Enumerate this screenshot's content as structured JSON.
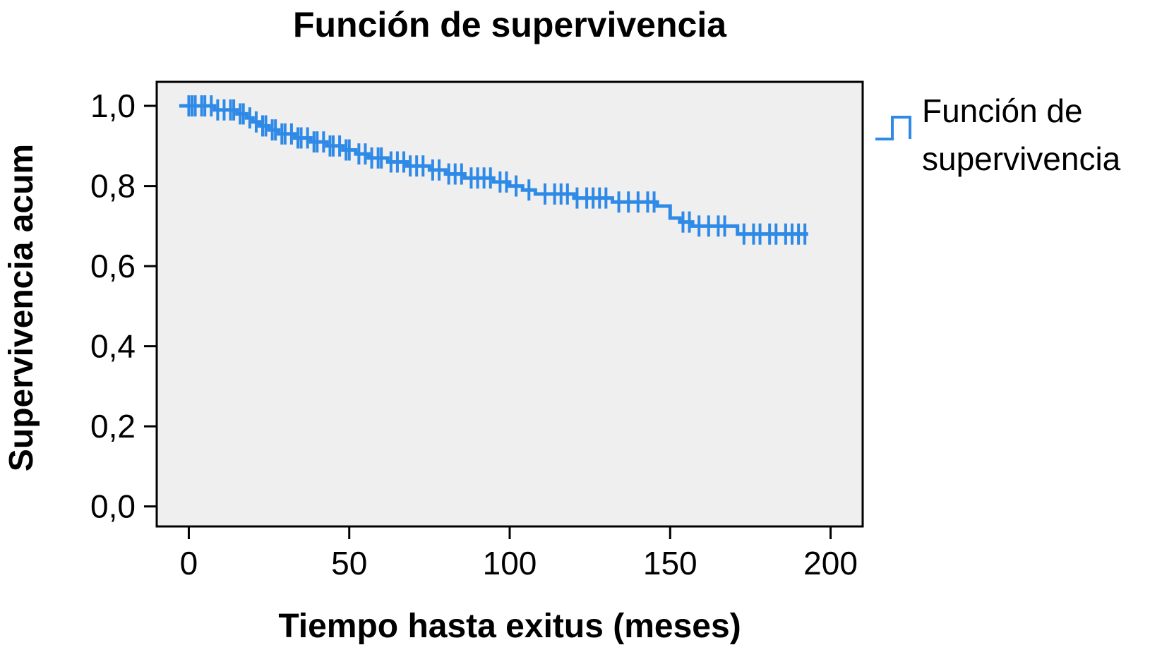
{
  "colors": {
    "series": "#2e8ae6",
    "plot_background": "#efefef",
    "axis": "#000000"
  },
  "chart_data": {
    "type": "line",
    "subtype": "kaplan-meier step function with censor marks",
    "title": "Función de supervivencia",
    "xlabel": "Tiempo hasta exitus (meses)",
    "ylabel": "Supervivencia acum",
    "xlim": [
      -10,
      210
    ],
    "ylim": [
      -0.05,
      1.06
    ],
    "xticks": [
      0,
      50,
      100,
      150,
      200
    ],
    "xtick_labels": [
      "0",
      "50",
      "100",
      "150",
      "200"
    ],
    "yticks": [
      0.0,
      0.2,
      0.4,
      0.6,
      0.8,
      1.0
    ],
    "ytick_labels": [
      "0,0",
      "0,2",
      "0,4",
      "0,6",
      "0,8",
      "1,0"
    ],
    "grid": false,
    "legend_position": "right",
    "legend_lines": [
      "Función de",
      "supervivencia"
    ],
    "series": [
      {
        "name": "Función de supervivencia",
        "steps": [
          [
            -3,
            1.0
          ],
          [
            8,
            0.99
          ],
          [
            15,
            0.98
          ],
          [
            18,
            0.97
          ],
          [
            20,
            0.96
          ],
          [
            22,
            0.95
          ],
          [
            25,
            0.94
          ],
          [
            28,
            0.93
          ],
          [
            33,
            0.92
          ],
          [
            38,
            0.91
          ],
          [
            43,
            0.9
          ],
          [
            48,
            0.89
          ],
          [
            52,
            0.88
          ],
          [
            56,
            0.87
          ],
          [
            62,
            0.86
          ],
          [
            68,
            0.85
          ],
          [
            75,
            0.84
          ],
          [
            80,
            0.83
          ],
          [
            86,
            0.82
          ],
          [
            95,
            0.81
          ],
          [
            100,
            0.8
          ],
          [
            104,
            0.79
          ],
          [
            108,
            0.78
          ],
          [
            120,
            0.77
          ],
          [
            132,
            0.76
          ],
          [
            146,
            0.75
          ],
          [
            150,
            0.72
          ],
          [
            153,
            0.71
          ],
          [
            157,
            0.7
          ],
          [
            171,
            0.68
          ],
          [
            193,
            0.68
          ]
        ],
        "censor_times": [
          0,
          1,
          2,
          4,
          5,
          7,
          9,
          11,
          13,
          14,
          16,
          17,
          19,
          21,
          23,
          24,
          26,
          27,
          29,
          30,
          32,
          34,
          35,
          37,
          39,
          40,
          42,
          44,
          45,
          47,
          49,
          50,
          53,
          55,
          57,
          59,
          60,
          63,
          65,
          67,
          69,
          71,
          73,
          76,
          78,
          81,
          83,
          85,
          88,
          90,
          92,
          94,
          97,
          99,
          102,
          106,
          111,
          114,
          116,
          118,
          121,
          124,
          126,
          128,
          130,
          134,
          137,
          140,
          143,
          145,
          154,
          156,
          159,
          162,
          165,
          167,
          173,
          176,
          178,
          181,
          183,
          186,
          188,
          190,
          192
        ]
      }
    ]
  }
}
